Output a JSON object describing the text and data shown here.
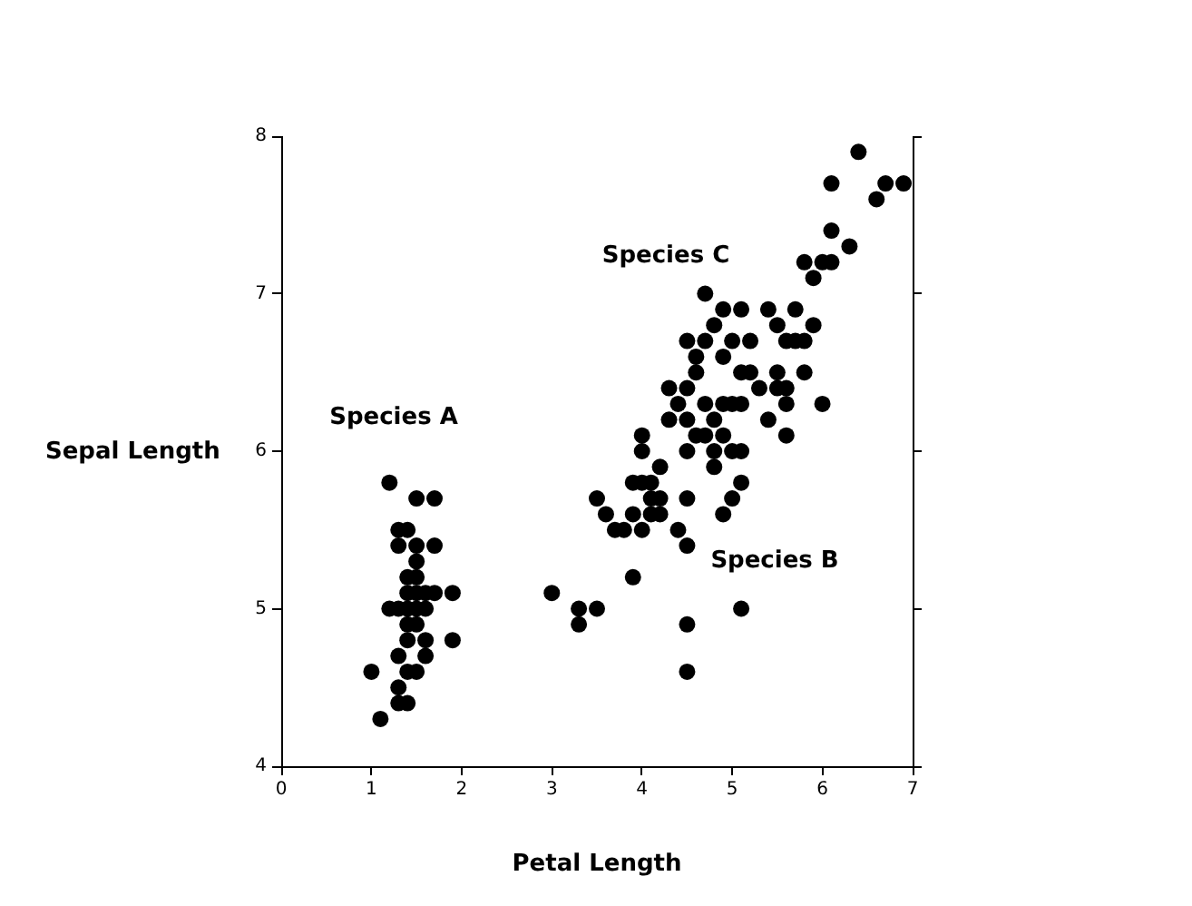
{
  "chart_data": {
    "type": "scatter",
    "xlabel": "Petal Length",
    "ylabel": "Sepal Length",
    "xlim": [
      0,
      7
    ],
    "xticks": [
      0,
      1,
      2,
      3,
      4,
      5,
      6,
      7
    ],
    "ylim": [
      4,
      8
    ],
    "yticks": [
      4,
      5,
      6,
      7,
      8
    ],
    "marker": "circle",
    "legend": false,
    "annotations": [
      "Species A",
      "Species C",
      "Species B"
    ],
    "series": [
      {
        "color": "#000000",
        "x": [
          1.2,
          1.5,
          1.7,
          1.3,
          1.4,
          1.3,
          1.5,
          1.7,
          1.5,
          1.4,
          1.5,
          1.4,
          1.5,
          1.6,
          1.7,
          1.9,
          1.2,
          1.3,
          1.4,
          1.5,
          1.6,
          1.4,
          1.5,
          1.4,
          1.6,
          1.9,
          1.3,
          1.6,
          1.0,
          1.4,
          1.5,
          1.3,
          1.3,
          1.4,
          1.1,
          6.4,
          6.1,
          6.7,
          6.9,
          6.6,
          6.1,
          6.3,
          5.8,
          6.0,
          6.1,
          5.9,
          4.7,
          4.9,
          5.1,
          5.4,
          5.7,
          4.8,
          5.5,
          5.9,
          4.5,
          4.7,
          5.0,
          5.2,
          5.6,
          5.7,
          5.8,
          4.6,
          4.9,
          4.6,
          5.1,
          5.2,
          5.5,
          5.8,
          4.3,
          4.5,
          5.3,
          5.5,
          5.6,
          4.4,
          4.7,
          4.9,
          5.0,
          5.1,
          5.6,
          6.0,
          4.3,
          4.5,
          4.8,
          5.4,
          4.0,
          4.6,
          4.7,
          4.9,
          5.6,
          4.0,
          4.5,
          4.8,
          5.0,
          5.1,
          4.2,
          4.8,
          3.9,
          4.0,
          4.1,
          5.1,
          3.5,
          4.1,
          4.2,
          4.5,
          5.0,
          3.6,
          3.9,
          4.1,
          4.2,
          4.9,
          3.7,
          3.8,
          4.0,
          4.4,
          4.5,
          3.9,
          3.0,
          3.3,
          3.5,
          5.1,
          3.3,
          4.5,
          4.5
        ],
        "values": [
          5.8,
          5.7,
          5.7,
          5.5,
          5.5,
          5.4,
          5.4,
          5.4,
          5.3,
          5.2,
          5.2,
          5.1,
          5.1,
          5.1,
          5.1,
          5.1,
          5.0,
          5.0,
          5.0,
          5.0,
          5.0,
          4.9,
          4.9,
          4.8,
          4.8,
          4.8,
          4.7,
          4.7,
          4.6,
          4.6,
          4.6,
          4.5,
          4.4,
          4.4,
          4.3,
          7.9,
          7.7,
          7.7,
          7.7,
          7.6,
          7.4,
          7.3,
          7.2,
          7.2,
          7.2,
          7.1,
          7.0,
          6.9,
          6.9,
          6.9,
          6.9,
          6.8,
          6.8,
          6.8,
          6.7,
          6.7,
          6.7,
          6.7,
          6.7,
          6.7,
          6.7,
          6.6,
          6.6,
          6.5,
          6.5,
          6.5,
          6.5,
          6.5,
          6.4,
          6.4,
          6.4,
          6.4,
          6.4,
          6.3,
          6.3,
          6.3,
          6.3,
          6.3,
          6.3,
          6.3,
          6.2,
          6.2,
          6.2,
          6.2,
          6.1,
          6.1,
          6.1,
          6.1,
          6.1,
          6.0,
          6.0,
          6.0,
          6.0,
          6.0,
          5.9,
          5.9,
          5.8,
          5.8,
          5.8,
          5.8,
          5.7,
          5.7,
          5.7,
          5.7,
          5.7,
          5.6,
          5.6,
          5.6,
          5.6,
          5.6,
          5.5,
          5.5,
          5.5,
          5.5,
          5.4,
          5.2,
          5.1,
          5.0,
          5.0,
          5.0,
          4.9,
          4.9,
          4.6
        ]
      }
    ]
  }
}
